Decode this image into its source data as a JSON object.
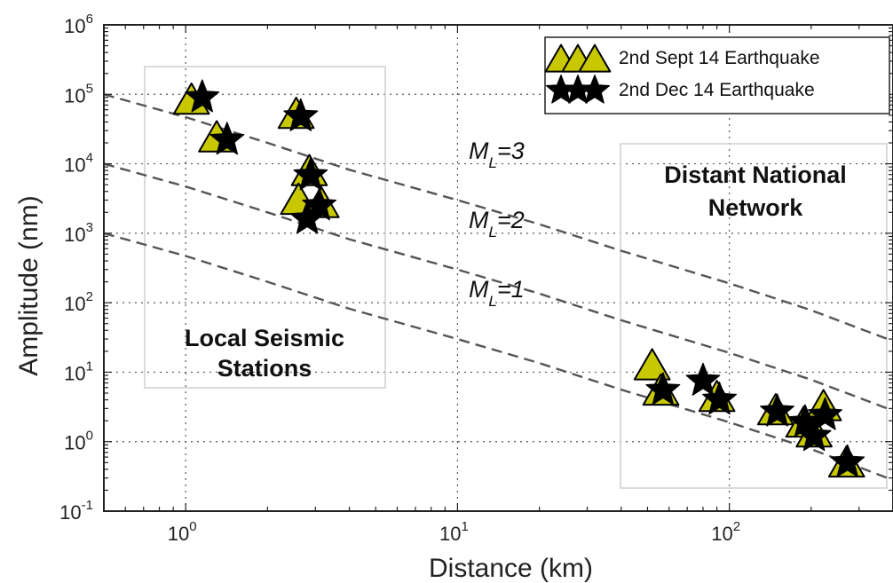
{
  "chart_data": {
    "type": "scatter",
    "title": "",
    "xlabel": "Distance (km)",
    "ylabel": "Amplitude (nm)",
    "x_scale": "log",
    "y_scale": "log",
    "xlim": [
      0.5,
      400
    ],
    "ylim": [
      0.1,
      1000000
    ],
    "grid": true,
    "legend_position": "top-right",
    "x_ticks": [
      {
        "value": 1,
        "base": "10",
        "exp": "0"
      },
      {
        "value": 10,
        "base": "10",
        "exp": "1"
      },
      {
        "value": 100,
        "base": "10",
        "exp": "2"
      }
    ],
    "y_ticks": [
      {
        "value": 0.1,
        "base": "10",
        "exp": "-1"
      },
      {
        "value": 1,
        "base": "10",
        "exp": "0"
      },
      {
        "value": 10,
        "base": "10",
        "exp": "1"
      },
      {
        "value": 100,
        "base": "10",
        "exp": "2"
      },
      {
        "value": 1000,
        "base": "10",
        "exp": "3"
      },
      {
        "value": 10000,
        "base": "10",
        "exp": "4"
      },
      {
        "value": 100000,
        "base": "10",
        "exp": "5"
      },
      {
        "value": 1000000,
        "base": "10",
        "exp": "6"
      }
    ],
    "series": [
      {
        "name": "2nd Sept 14 Earthquake",
        "marker": "triangle",
        "color": "#c8c800",
        "points": [
          {
            "x": 1.05,
            "y": 80000
          },
          {
            "x": 1.3,
            "y": 23000
          },
          {
            "x": 2.55,
            "y": 50000
          },
          {
            "x": 2.85,
            "y": 7500
          },
          {
            "x": 2.6,
            "y": 2900
          },
          {
            "x": 3.15,
            "y": 2600
          },
          {
            "x": 52,
            "y": 12
          },
          {
            "x": 56,
            "y": 5.2
          },
          {
            "x": 90,
            "y": 4.2
          },
          {
            "x": 148,
            "y": 2.7
          },
          {
            "x": 188,
            "y": 1.8
          },
          {
            "x": 205,
            "y": 1.3
          },
          {
            "x": 222,
            "y": 3.1
          },
          {
            "x": 270,
            "y": 0.48
          }
        ]
      },
      {
        "name": "2nd Dec 14 Earthquake",
        "marker": "star",
        "color": "#000000",
        "points": [
          {
            "x": 1.15,
            "y": 90000
          },
          {
            "x": 1.42,
            "y": 22000
          },
          {
            "x": 2.65,
            "y": 48000
          },
          {
            "x": 2.88,
            "y": 6800
          },
          {
            "x": 2.8,
            "y": 1600
          },
          {
            "x": 3.1,
            "y": 2500
          },
          {
            "x": 57,
            "y": 5.5
          },
          {
            "x": 80,
            "y": 7.5
          },
          {
            "x": 92,
            "y": 4.0
          },
          {
            "x": 150,
            "y": 2.7
          },
          {
            "x": 190,
            "y": 1.9
          },
          {
            "x": 205,
            "y": 1.2
          },
          {
            "x": 225,
            "y": 2.4
          },
          {
            "x": 272,
            "y": 0.5
          }
        ]
      }
    ],
    "reference_curves": [
      {
        "label_main": "M",
        "label_sub": "L",
        "label_rest": "=1",
        "points": [
          [
            0.5,
            1000
          ],
          [
            1,
            470
          ],
          [
            2,
            200
          ],
          [
            4,
            82
          ],
          [
            10,
            30
          ],
          [
            20,
            13.5
          ],
          [
            40,
            5.6
          ],
          [
            100,
            1.9
          ],
          [
            200,
            0.78
          ],
          [
            400,
            0.28
          ]
        ]
      },
      {
        "label_main": "M",
        "label_sub": "L",
        "label_rest": "=2",
        "points": [
          [
            0.5,
            10000
          ],
          [
            1,
            4700
          ],
          [
            2,
            2000
          ],
          [
            4,
            820
          ],
          [
            10,
            300
          ],
          [
            20,
            135
          ],
          [
            40,
            56
          ],
          [
            100,
            19
          ],
          [
            200,
            7.8
          ],
          [
            400,
            2.8
          ]
        ]
      },
      {
        "label_main": "M",
        "label_sub": "L",
        "label_rest": "=3",
        "points": [
          [
            0.5,
            100000
          ],
          [
            1,
            47000
          ],
          [
            2,
            20000
          ],
          [
            4,
            8200
          ],
          [
            10,
            3000
          ],
          [
            20,
            1350
          ],
          [
            40,
            560
          ],
          [
            100,
            190
          ],
          [
            200,
            78
          ],
          [
            400,
            28
          ]
        ]
      }
    ],
    "annotations": [
      {
        "lines": [
          "Local Seismic",
          "Stations"
        ]
      },
      {
        "lines": [
          "Distant National",
          "Network"
        ]
      }
    ]
  }
}
